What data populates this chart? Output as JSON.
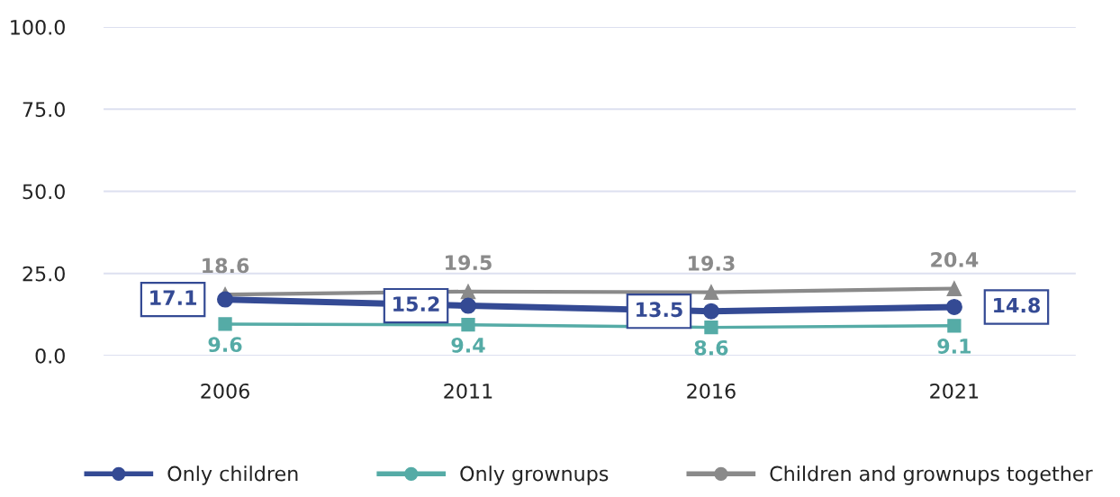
{
  "chart_data": {
    "type": "line",
    "categories": [
      "2006",
      "2011",
      "2016",
      "2021"
    ],
    "series": [
      {
        "name": "Only children",
        "color": "#344a94",
        "marker": "circle",
        "values": [
          17.1,
          15.2,
          13.5,
          14.8
        ]
      },
      {
        "name": "Only grownups",
        "color": "#55aba6",
        "marker": "square",
        "values": [
          9.6,
          9.4,
          8.6,
          9.1
        ]
      },
      {
        "name": "Children and grownups together",
        "color": "#8a8a8a",
        "marker": "triangle",
        "values": [
          18.6,
          19.5,
          19.3,
          20.4
        ]
      }
    ],
    "ylim": [
      0,
      100
    ],
    "yticks": [
      {
        "value": 0,
        "label": "0.0"
      },
      {
        "value": 25,
        "label": "25.0"
      },
      {
        "value": 50,
        "label": "50.0"
      },
      {
        "value": 75,
        "label": "75.0"
      },
      {
        "value": 100,
        "label": "100.0"
      }
    ],
    "grid": "y",
    "legend": "bottom",
    "data_labels": true,
    "line_style": "solid"
  }
}
